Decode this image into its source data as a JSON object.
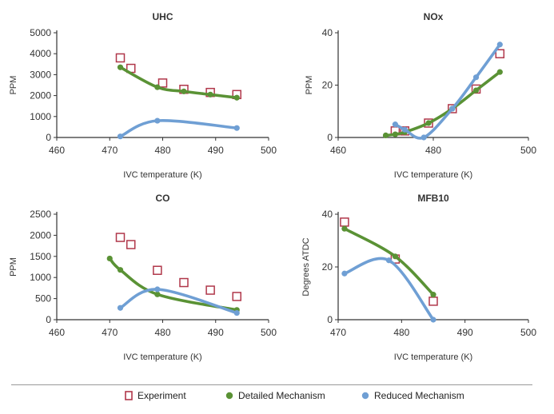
{
  "colors": {
    "experiment": "#b0374a",
    "detailed": "#5a9235",
    "reduced": "#6f9fd4",
    "axis": "#333333",
    "tick_text": "#333333"
  },
  "legend": {
    "experiment": "Experiment",
    "detailed": "Detailed Mechanism",
    "reduced": "Reduced Mechanism"
  },
  "chart_data": [
    {
      "type": "line",
      "title": "UHC",
      "xlabel": "IVC temperature (K)",
      "ylabel": "PPM",
      "xlim": [
        460,
        500
      ],
      "ylim": [
        0,
        5000
      ],
      "xticks": [
        460,
        470,
        480,
        490,
        500
      ],
      "yticks": [
        0,
        1000,
        2000,
        3000,
        4000,
        5000
      ],
      "series": [
        {
          "name": "Experiment",
          "kind": "square",
          "x": [
            472,
            474,
            480,
            484,
            489,
            494
          ],
          "y": [
            3800,
            3300,
            2600,
            2300,
            2150,
            2050
          ]
        },
        {
          "name": "Detailed Mechanism",
          "kind": "line",
          "x": [
            472,
            479,
            484,
            489,
            494
          ],
          "y": [
            3350,
            2400,
            2200,
            2050,
            1900
          ]
        },
        {
          "name": "Reduced Mechanism",
          "kind": "line",
          "x": [
            472,
            479,
            494
          ],
          "y": [
            50,
            800,
            450
          ]
        }
      ]
    },
    {
      "type": "line",
      "title": "NOx",
      "xlabel": "IVC temperature (K)",
      "ylabel": "PPM",
      "xlim": [
        460,
        500
      ],
      "ylim": [
        0,
        40
      ],
      "xticks": [
        460,
        480,
        500
      ],
      "yticks": [
        0,
        20,
        40
      ],
      "series": [
        {
          "name": "Experiment",
          "kind": "square",
          "x": [
            472,
            474,
            479,
            484,
            489,
            494
          ],
          "y": [
            2.5,
            2.5,
            5.5,
            11,
            18.5,
            32
          ]
        },
        {
          "name": "Detailed Mechanism",
          "kind": "line",
          "x": [
            470,
            472,
            474,
            479,
            484,
            489,
            494
          ],
          "y": [
            0.8,
            1.2,
            2,
            5.5,
            11,
            18,
            25
          ]
        },
        {
          "name": "Reduced Mechanism",
          "kind": "line",
          "x": [
            472,
            474,
            478,
            484,
            489,
            494
          ],
          "y": [
            5,
            3,
            0,
            11,
            23,
            35.5
          ]
        }
      ]
    },
    {
      "type": "line",
      "title": "CO",
      "xlabel": "IVC temperature (K)",
      "ylabel": "PPM",
      "xlim": [
        460,
        500
      ],
      "ylim": [
        0,
        2500
      ],
      "xticks": [
        460,
        470,
        480,
        490,
        500
      ],
      "yticks": [
        0,
        500,
        1000,
        1500,
        2000,
        2500
      ],
      "series": [
        {
          "name": "Experiment",
          "kind": "square",
          "x": [
            472,
            474,
            479,
            484,
            489,
            494
          ],
          "y": [
            1950,
            1780,
            1170,
            880,
            700,
            550
          ]
        },
        {
          "name": "Detailed Mechanism",
          "kind": "line",
          "x": [
            470,
            472,
            479,
            494
          ],
          "y": [
            1450,
            1180,
            600,
            230
          ]
        },
        {
          "name": "Reduced Mechanism",
          "kind": "line",
          "x": [
            472,
            479,
            494
          ],
          "y": [
            280,
            720,
            160
          ]
        }
      ]
    },
    {
      "type": "line",
      "title": "MFB10",
      "xlabel": "IVC temperature (K)",
      "ylabel": "Degrees ATDC",
      "xlim": [
        470,
        500
      ],
      "ylim": [
        0,
        40
      ],
      "xticks": [
        470,
        480,
        490,
        500
      ],
      "yticks": [
        0,
        20,
        40
      ],
      "series": [
        {
          "name": "Experiment",
          "kind": "square",
          "x": [
            471,
            479,
            485
          ],
          "y": [
            37,
            23,
            7
          ]
        },
        {
          "name": "Detailed Mechanism",
          "kind": "line",
          "x": [
            471,
            479,
            485
          ],
          "y": [
            34.5,
            24,
            9.5
          ]
        },
        {
          "name": "Reduced Mechanism",
          "kind": "line",
          "x": [
            471,
            478,
            485
          ],
          "y": [
            17.5,
            22.5,
            0
          ]
        }
      ]
    }
  ]
}
